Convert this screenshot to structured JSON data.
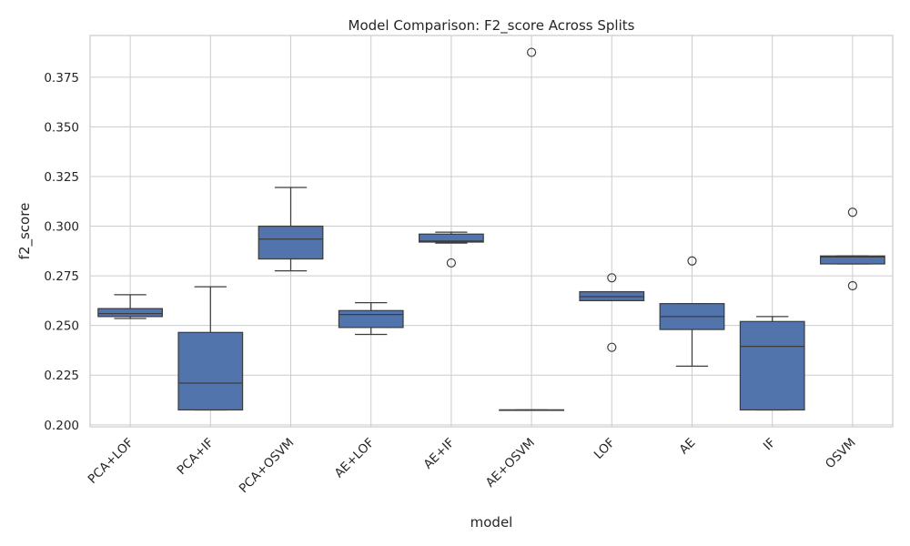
{
  "chart_data": {
    "type": "box",
    "title": "Model Comparison: F2_score Across Splits",
    "xlabel": "model",
    "ylabel": "f2_score",
    "ylim": [
      0.199,
      0.396
    ],
    "yticks": [
      "0.200",
      "0.225",
      "0.250",
      "0.275",
      "0.300",
      "0.325",
      "0.350",
      "0.375"
    ],
    "ytick_values": [
      0.2,
      0.225,
      0.25,
      0.275,
      0.3,
      0.325,
      0.35,
      0.375
    ],
    "grid": true,
    "box_color": "#5274ad",
    "line_color": "#3d3d3d",
    "categories": [
      "PCA+LOF",
      "PCA+IF",
      "PCA+OSVM",
      "AE+LOF",
      "AE+IF",
      "AE+OSVM",
      "LOF",
      "AE",
      "IF",
      "OSVM"
    ],
    "boxes": [
      {
        "model": "PCA+LOF",
        "whisker_low": 0.2535,
        "q1": 0.2545,
        "median": 0.256,
        "q3": 0.2585,
        "whisker_high": 0.2655,
        "outliers": []
      },
      {
        "model": "PCA+IF",
        "whisker_low": 0.2075,
        "q1": 0.2075,
        "median": 0.221,
        "q3": 0.2465,
        "whisker_high": 0.2695,
        "outliers": []
      },
      {
        "model": "PCA+OSVM",
        "whisker_low": 0.2775,
        "q1": 0.2835,
        "median": 0.2935,
        "q3": 0.3,
        "whisker_high": 0.3195,
        "outliers": []
      },
      {
        "model": "AE+LOF",
        "whisker_low": 0.2455,
        "q1": 0.249,
        "median": 0.2555,
        "q3": 0.2575,
        "whisker_high": 0.2615,
        "outliers": []
      },
      {
        "model": "AE+IF",
        "whisker_low": 0.2915,
        "q1": 0.292,
        "median": 0.2925,
        "q3": 0.296,
        "whisker_high": 0.297,
        "outliers": [
          0.2815
        ]
      },
      {
        "model": "AE+OSVM",
        "whisker_low": 0.2075,
        "q1": 0.2075,
        "median": 0.2075,
        "q3": 0.2075,
        "whisker_high": 0.2075,
        "outliers": [
          0.3875
        ]
      },
      {
        "model": "LOF",
        "whisker_low": 0.2625,
        "q1": 0.2625,
        "median": 0.2645,
        "q3": 0.267,
        "whisker_high": 0.267,
        "outliers": [
          0.274,
          0.239
        ]
      },
      {
        "model": "AE",
        "whisker_low": 0.2295,
        "q1": 0.248,
        "median": 0.2545,
        "q3": 0.261,
        "whisker_high": 0.261,
        "outliers": [
          0.2825
        ]
      },
      {
        "model": "IF",
        "whisker_low": 0.2075,
        "q1": 0.2075,
        "median": 0.2395,
        "q3": 0.252,
        "whisker_high": 0.2545,
        "outliers": []
      },
      {
        "model": "OSVM",
        "whisker_low": 0.281,
        "q1": 0.281,
        "median": 0.2845,
        "q3": 0.285,
        "whisker_high": 0.285,
        "outliers": [
          0.307,
          0.27
        ]
      }
    ]
  }
}
